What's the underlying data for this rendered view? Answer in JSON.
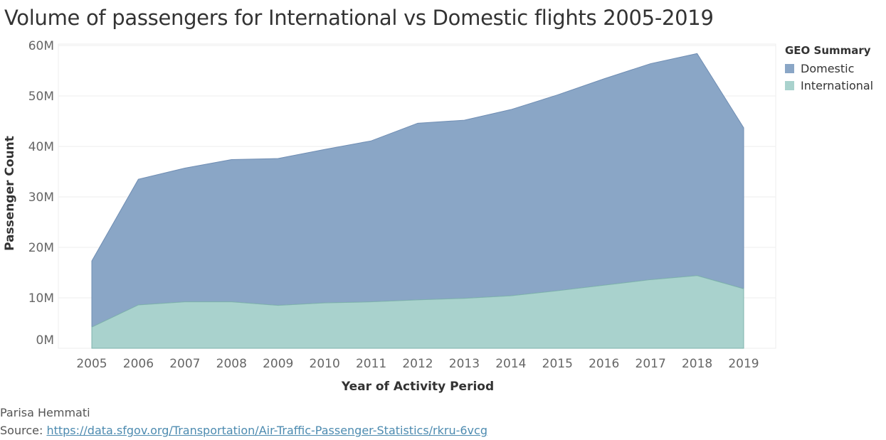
{
  "title": "Volume of passengers for International vs Domestic flights 2005-2019",
  "legend": {
    "title": "GEO Summary",
    "items": [
      {
        "label": "Domestic",
        "color": "#8aa6c6"
      },
      {
        "label": "International",
        "color": "#a9d2cd"
      }
    ]
  },
  "footer": {
    "author": "Parisa Hemmati",
    "source_label": "Source:",
    "source_url": "https://data.sfgov.org/Transportation/Air-Traffic-Passenger-Statistics/rkru-6vcg"
  },
  "chart_data": {
    "type": "area",
    "stacked": true,
    "xlabel": "Year of Activity Period",
    "ylabel": "Passenger Count",
    "x": [
      "2005",
      "2006",
      "2007",
      "2008",
      "2009",
      "2010",
      "2011",
      "2012",
      "2013",
      "2014",
      "2015",
      "2016",
      "2017",
      "2018",
      "2019"
    ],
    "series": [
      {
        "name": "International",
        "color": "#a9d2cd",
        "line": "#7fb3ad",
        "values": [
          4.2,
          8.6,
          9.2,
          9.2,
          8.5,
          9.0,
          9.2,
          9.6,
          9.9,
          10.4,
          11.4,
          12.5,
          13.6,
          14.4,
          11.8
        ]
      },
      {
        "name": "Domestic",
        "color": "#8aa6c6",
        "line": "#6f8db3",
        "values": [
          13.1,
          24.9,
          26.5,
          28.2,
          29.1,
          30.4,
          31.9,
          35.0,
          35.3,
          36.9,
          38.8,
          40.9,
          42.8,
          44.0,
          31.9
        ]
      }
    ],
    "yticks": [
      0,
      10,
      20,
      30,
      40,
      50,
      60
    ],
    "ytick_labels": [
      "0M",
      "10M",
      "20M",
      "30M",
      "40M",
      "50M",
      "60M"
    ],
    "ylim": [
      0,
      60
    ],
    "grid": true
  }
}
